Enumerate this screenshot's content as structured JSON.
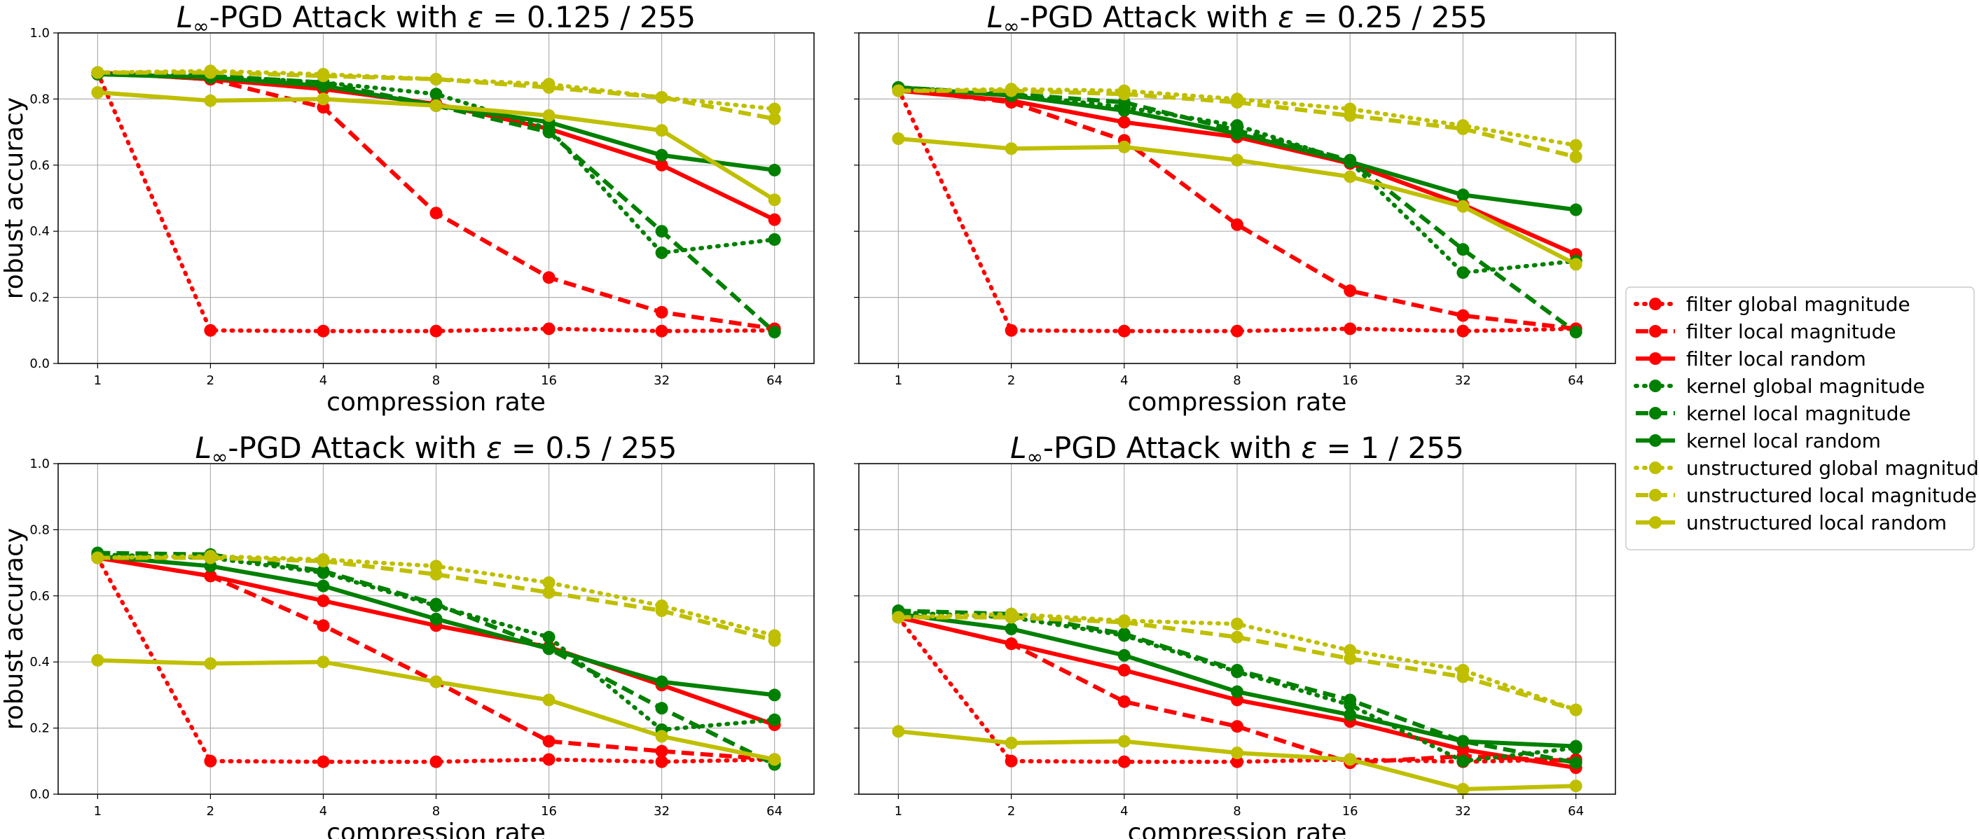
{
  "chart_data": {
    "type": "line",
    "x_scale": "log2",
    "ylim": [
      0.0,
      1.0
    ],
    "grid": true,
    "legend_placement": "center-right",
    "x": [
      1,
      2,
      4,
      8,
      16,
      32,
      64
    ],
    "x_tick_labels": [
      "1",
      "2",
      "4",
      "8",
      "16",
      "32",
      "64"
    ],
    "y_tick_labels": [
      "0.0",
      "0.2",
      "0.4",
      "0.6",
      "0.8",
      "1.0"
    ],
    "xlabel": "compression rate",
    "ylabel": "robust accuracy",
    "series_styles": [
      {
        "name": "filter global magnitude",
        "color": "#ff0000",
        "dash": "dotted"
      },
      {
        "name": "filter local magnitude",
        "color": "#ff0000",
        "dash": "dashed"
      },
      {
        "name": "filter local random",
        "color": "#ff0000",
        "dash": "solid"
      },
      {
        "name": "kernel global magnitude",
        "color": "#008000",
        "dash": "dotted"
      },
      {
        "name": "kernel local magnitude",
        "color": "#008000",
        "dash": "dashed"
      },
      {
        "name": "kernel local random",
        "color": "#008000",
        "dash": "solid"
      },
      {
        "name": "unstructured global magnitude",
        "color": "#bfbf00",
        "dash": "dotted"
      },
      {
        "name": "unstructured local magnitude",
        "color": "#bfbf00",
        "dash": "dashed"
      },
      {
        "name": "unstructured local random",
        "color": "#bfbf00",
        "dash": "solid"
      }
    ],
    "panels": [
      {
        "title_prefix": "L",
        "title_sub": "∞",
        "title_main": "-PGD Attack with ",
        "title_eps": "ε",
        "title_rest": " = 0.125 / 255",
        "series": [
          [
            0.88,
            0.1,
            0.098,
            0.098,
            0.105,
            0.098,
            0.1
          ],
          [
            0.88,
            0.86,
            0.775,
            0.455,
            0.26,
            0.155,
            0.105
          ],
          [
            0.88,
            0.86,
            0.83,
            0.785,
            0.71,
            0.6,
            0.435
          ],
          [
            0.88,
            0.87,
            0.85,
            0.815,
            0.71,
            0.335,
            0.375
          ],
          [
            0.88,
            0.87,
            0.85,
            0.78,
            0.7,
            0.4,
            0.095
          ],
          [
            0.875,
            0.865,
            0.84,
            0.78,
            0.73,
            0.63,
            0.585
          ],
          [
            0.88,
            0.885,
            0.875,
            0.86,
            0.845,
            0.805,
            0.77
          ],
          [
            0.88,
            0.88,
            0.87,
            0.86,
            0.835,
            0.805,
            0.74
          ],
          [
            0.82,
            0.795,
            0.8,
            0.78,
            0.75,
            0.705,
            0.495
          ]
        ]
      },
      {
        "title_prefix": "L",
        "title_sub": "∞",
        "title_main": "-PGD Attack with ",
        "title_eps": "ε",
        "title_rest": " = 0.25 / 255",
        "series": [
          [
            0.83,
            0.1,
            0.098,
            0.098,
            0.105,
            0.098,
            0.105
          ],
          [
            0.83,
            0.79,
            0.675,
            0.42,
            0.22,
            0.145,
            0.105
          ],
          [
            0.825,
            0.795,
            0.73,
            0.685,
            0.605,
            0.48,
            0.33
          ],
          [
            0.835,
            0.815,
            0.775,
            0.72,
            0.61,
            0.275,
            0.31
          ],
          [
            0.835,
            0.815,
            0.79,
            0.705,
            0.615,
            0.345,
            0.095
          ],
          [
            0.835,
            0.81,
            0.765,
            0.695,
            0.61,
            0.51,
            0.465
          ],
          [
            0.825,
            0.83,
            0.825,
            0.8,
            0.77,
            0.72,
            0.66
          ],
          [
            0.825,
            0.825,
            0.815,
            0.79,
            0.75,
            0.71,
            0.625
          ],
          [
            0.68,
            0.65,
            0.655,
            0.615,
            0.565,
            0.475,
            0.3
          ]
        ]
      },
      {
        "title_prefix": "L",
        "title_sub": "∞",
        "title_main": "-PGD Attack with ",
        "title_eps": "ε",
        "title_rest": " = 0.5 / 255",
        "series": [
          [
            0.715,
            0.1,
            0.098,
            0.098,
            0.105,
            0.098,
            0.105
          ],
          [
            0.715,
            0.66,
            0.51,
            0.34,
            0.16,
            0.13,
            0.105
          ],
          [
            0.715,
            0.66,
            0.585,
            0.51,
            0.445,
            0.33,
            0.21
          ],
          [
            0.725,
            0.715,
            0.67,
            0.57,
            0.475,
            0.195,
            0.225
          ],
          [
            0.73,
            0.725,
            0.675,
            0.575,
            0.44,
            0.26,
            0.09
          ],
          [
            0.72,
            0.69,
            0.63,
            0.53,
            0.44,
            0.34,
            0.3
          ],
          [
            0.715,
            0.72,
            0.71,
            0.69,
            0.64,
            0.57,
            0.48
          ],
          [
            0.715,
            0.715,
            0.705,
            0.665,
            0.61,
            0.555,
            0.465
          ],
          [
            0.405,
            0.395,
            0.4,
            0.34,
            0.285,
            0.175,
            0.105
          ]
        ]
      },
      {
        "title_prefix": "L",
        "title_sub": "∞",
        "title_main": "-PGD Attack with ",
        "title_eps": "ε",
        "title_rest": " = 1 / 255",
        "series": [
          [
            0.535,
            0.1,
            0.098,
            0.098,
            0.105,
            0.098,
            0.105
          ],
          [
            0.535,
            0.455,
            0.28,
            0.205,
            0.095,
            0.115,
            0.1
          ],
          [
            0.535,
            0.455,
            0.375,
            0.285,
            0.22,
            0.135,
            0.08
          ],
          [
            0.55,
            0.535,
            0.48,
            0.37,
            0.27,
            0.1,
            0.14
          ],
          [
            0.555,
            0.545,
            0.485,
            0.375,
            0.285,
            0.16,
            0.095
          ],
          [
            0.545,
            0.5,
            0.42,
            0.31,
            0.24,
            0.16,
            0.145
          ],
          [
            0.535,
            0.545,
            0.525,
            0.515,
            0.435,
            0.375,
            0.255
          ],
          [
            0.535,
            0.535,
            0.52,
            0.475,
            0.41,
            0.355,
            0.255
          ],
          [
            0.19,
            0.155,
            0.16,
            0.125,
            0.105,
            0.015,
            0.025
          ]
        ]
      }
    ]
  }
}
